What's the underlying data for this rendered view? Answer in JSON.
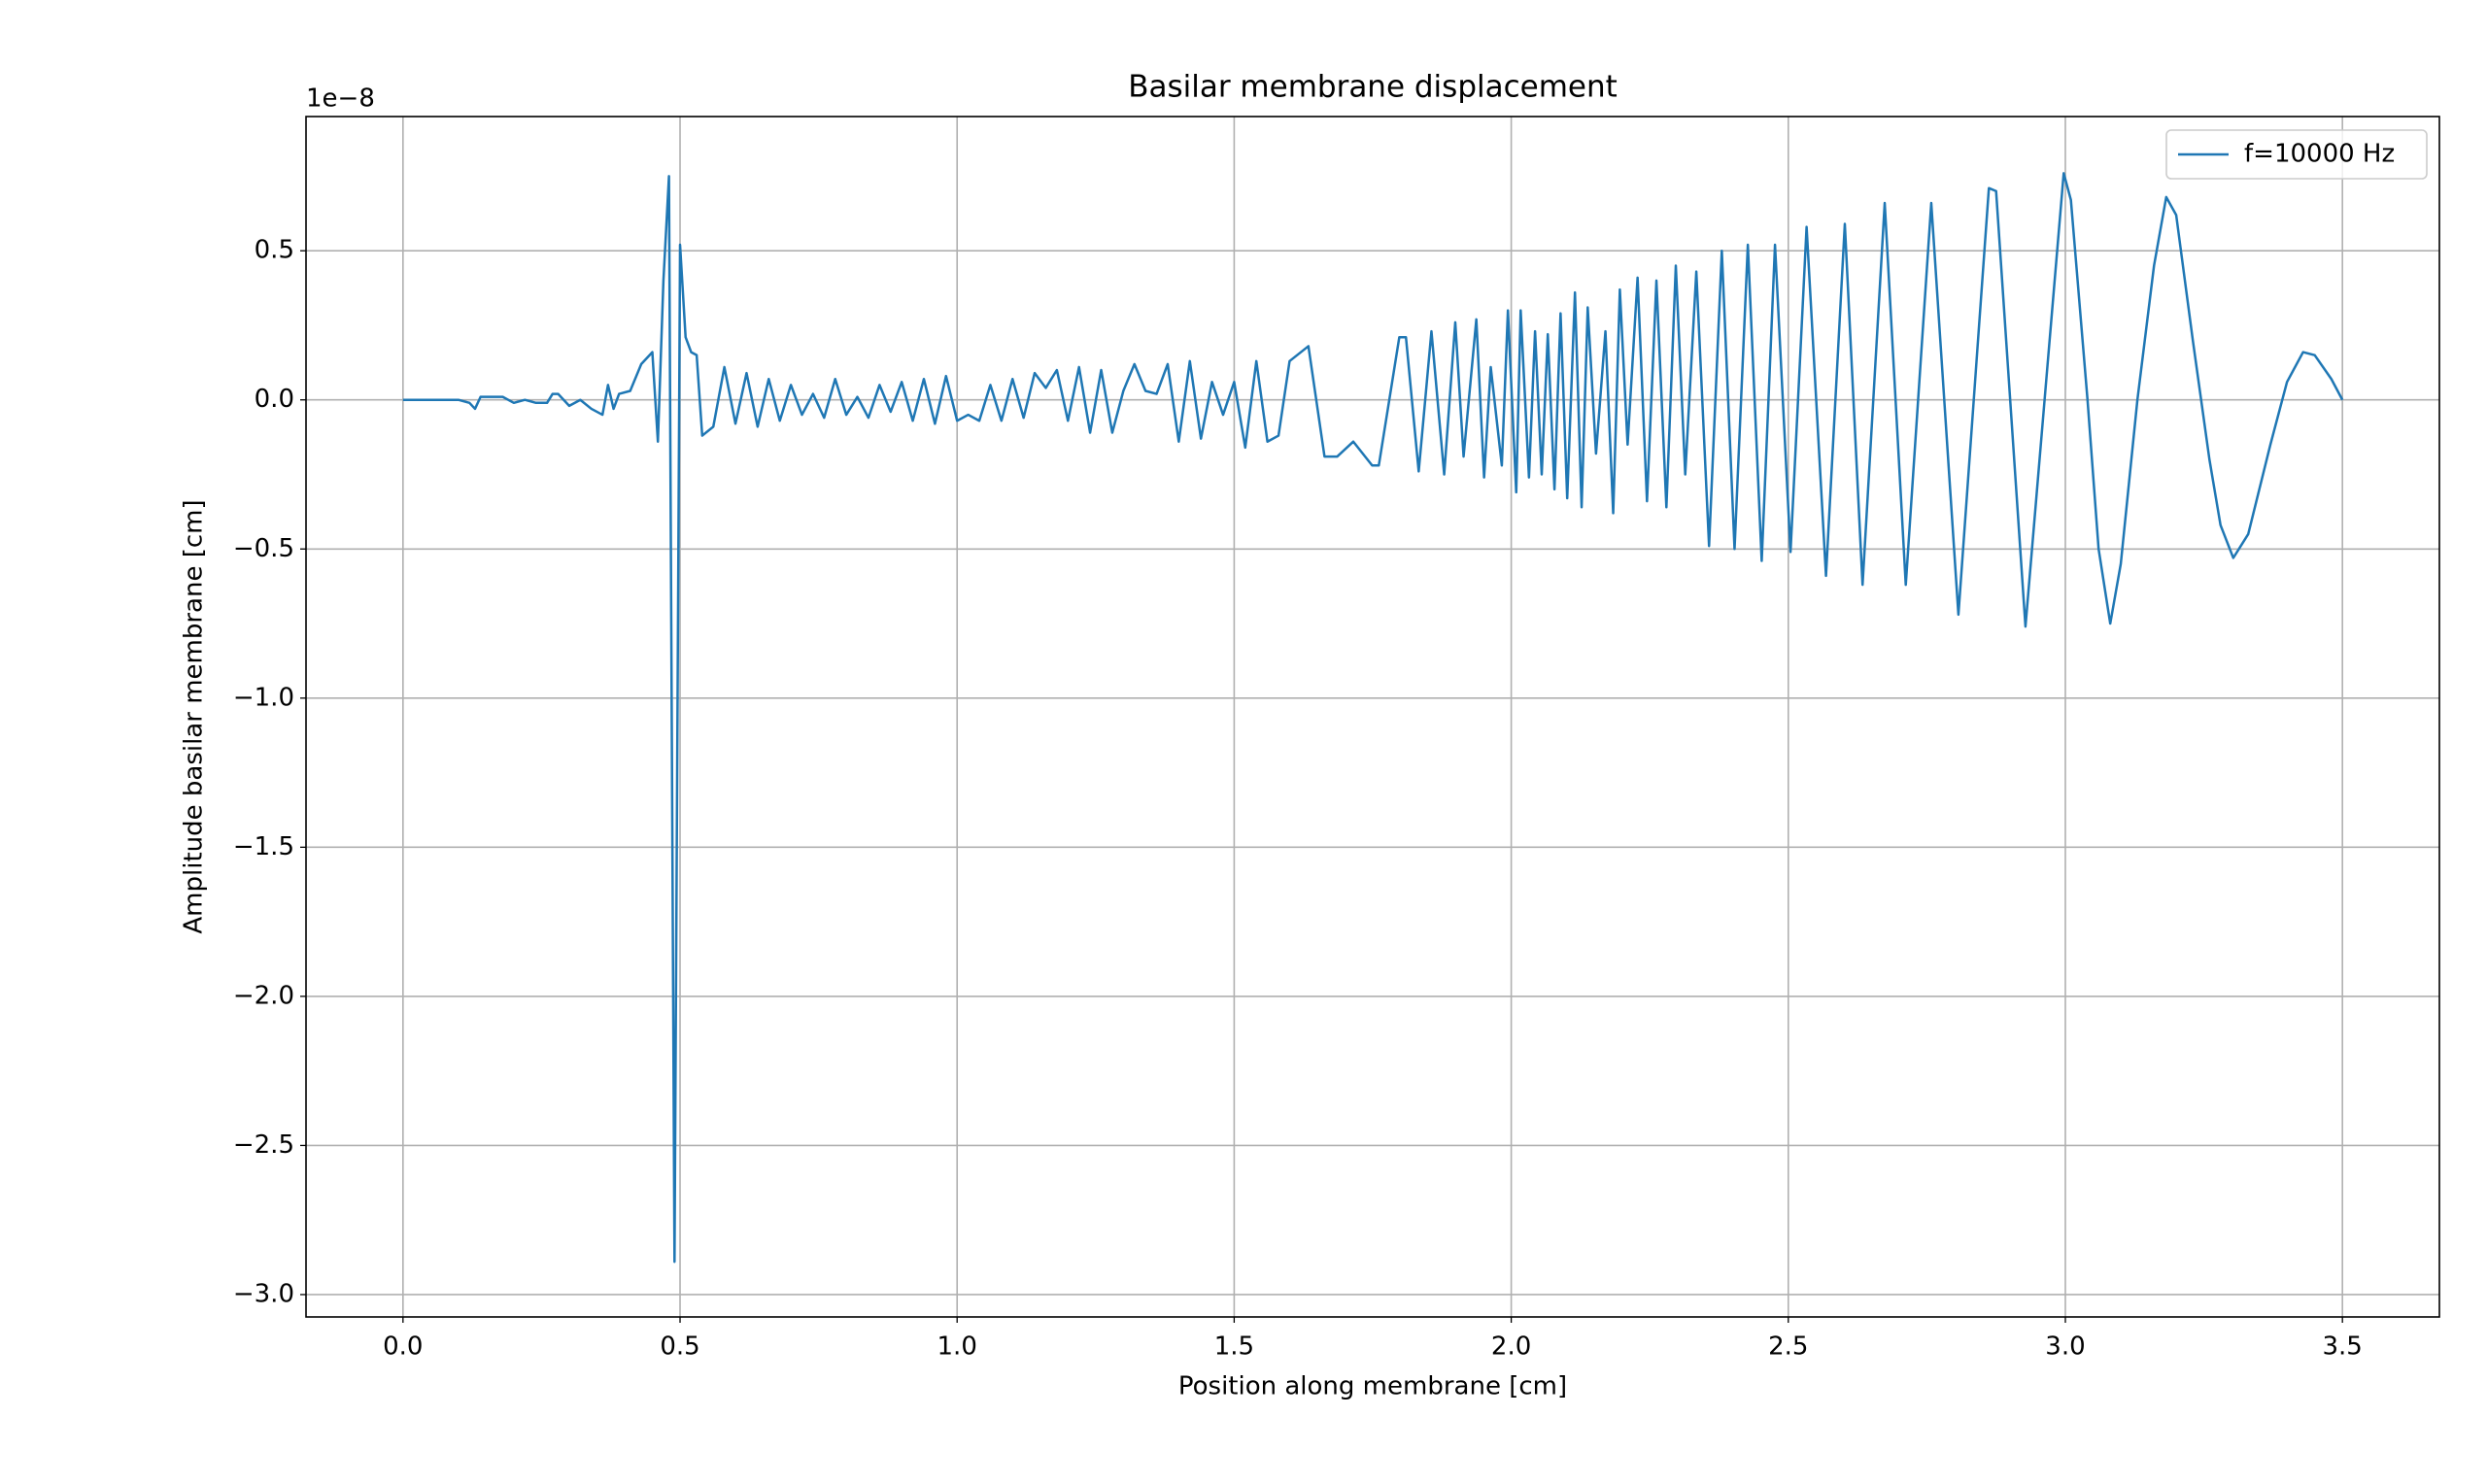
{
  "chart_data": {
    "type": "line",
    "title": "Basilar membrane displacement",
    "xlabel": "Position along membrane [cm]",
    "ylabel": "Amplitude basilar membrane [cm]",
    "y_offset_label": "1e−8",
    "legend": "upper right",
    "grid": true,
    "xlim": [
      -0.175,
      3.675
    ],
    "ylim": [
      -3.075,
      0.95
    ],
    "xticks": [
      {
        "value": 0,
        "label": "0.0"
      },
      0.5,
      {
        "value": 1,
        "label": "1.0"
      },
      1.5,
      {
        "value": 2,
        "label": "2.0"
      },
      2.5,
      {
        "value": 3,
        "label": "3.0"
      },
      3.5
    ],
    "yticks": [
      {
        "value": -3,
        "label": "−3.0"
      },
      {
        "value": -2.5,
        "label": "−2.5"
      },
      {
        "value": -2,
        "label": "−2.0"
      },
      {
        "value": -1.5,
        "label": "−1.5"
      },
      {
        "value": -1,
        "label": "−1.0"
      },
      {
        "value": -0.5,
        "label": "−0.5"
      },
      {
        "value": 0,
        "label": "0.0"
      },
      0.5
    ],
    "x": [
      0,
      0.02,
      0.04,
      0.06,
      0.08,
      0.1,
      0.12,
      0.13,
      0.14,
      0.16,
      0.18,
      0.2,
      0.22,
      0.24,
      0.26,
      0.27,
      0.28,
      0.3,
      0.32,
      0.34,
      0.36,
      0.37,
      0.38,
      0.39,
      0.41,
      0.43,
      0.45,
      0.46,
      0.47,
      0.48,
      0.49,
      0.5,
      0.51,
      0.52,
      0.53,
      0.54,
      0.56,
      0.58,
      0.6,
      0.62,
      0.64,
      0.66,
      0.68,
      0.7,
      0.72,
      0.74,
      0.76,
      0.78,
      0.8,
      0.82,
      0.84,
      0.86,
      0.88,
      0.9,
      0.92,
      0.94,
      0.96,
      0.98,
      1.0,
      1.02,
      1.04,
      1.06,
      1.08,
      1.1,
      1.12,
      1.14,
      1.16,
      1.18,
      1.2,
      1.22,
      1.24,
      1.26,
      1.28,
      1.3,
      1.32,
      1.34,
      1.36,
      1.38,
      1.4,
      1.42,
      1.44,
      1.46,
      1.48,
      1.5,
      1.52,
      1.54,
      1.56,
      1.58,
      1.6,
      1.634,
      1.663,
      1.686,
      1.715,
      1.749,
      1.761,
      1.798,
      1.81,
      1.833,
      1.856,
      1.879,
      1.899,
      1.914,
      1.937,
      1.951,
      1.963,
      1.983,
      1.994,
      2.009,
      2.017,
      2.032,
      2.043,
      2.055,
      2.066,
      2.078,
      2.089,
      2.101,
      2.115,
      2.127,
      2.138,
      2.153,
      2.17,
      2.184,
      2.196,
      2.21,
      2.228,
      2.245,
      2.262,
      2.28,
      2.297,
      2.314,
      2.334,
      2.357,
      2.38,
      2.403,
      2.427,
      2.452,
      2.476,
      2.504,
      2.533,
      2.568,
      2.602,
      2.634,
      2.674,
      2.712,
      2.758,
      2.807,
      2.862,
      2.875,
      2.928,
      2.997,
      3.01,
      3.04,
      3.06,
      3.081,
      3.1,
      3.13,
      3.16,
      3.182,
      3.2,
      3.23,
      3.26,
      3.28,
      3.303,
      3.33,
      3.37,
      3.4,
      3.429,
      3.45,
      3.48,
      3.5
    ],
    "series": [
      {
        "name": "f=10000 Hz",
        "color": "#1f77b4",
        "values": [
          0,
          0,
          0,
          0,
          0,
          0,
          -0.01,
          -0.03,
          0.01,
          0.01,
          0.01,
          -0.01,
          0,
          -0.01,
          -0.01,
          0.02,
          0.02,
          -0.02,
          0,
          -0.03,
          -0.05,
          0.05,
          -0.03,
          0.02,
          0.03,
          0.12,
          0.16,
          -0.14,
          0.4,
          0.75,
          -2.89,
          0.52,
          0.21,
          0.16,
          0.15,
          -0.12,
          -0.09,
          0.11,
          -0.08,
          0.09,
          -0.09,
          0.07,
          -0.07,
          0.05,
          -0.05,
          0.02,
          -0.06,
          0.07,
          -0.05,
          0.01,
          -0.06,
          0.05,
          -0.04,
          0.06,
          -0.07,
          0.07,
          -0.08,
          0.08,
          -0.07,
          -0.05,
          -0.07,
          0.05,
          -0.07,
          0.07,
          -0.06,
          0.09,
          0.04,
          0.1,
          -0.07,
          0.11,
          -0.11,
          0.1,
          -0.11,
          0.03,
          0.12,
          0.03,
          0.02,
          0.12,
          -0.14,
          0.13,
          -0.13,
          0.06,
          -0.05,
          0.06,
          -0.16,
          0.13,
          -0.14,
          -0.12,
          0.13,
          0.18,
          -0.19,
          -0.19,
          -0.14,
          -0.22,
          -0.22,
          0.21,
          0.21,
          -0.24,
          0.23,
          -0.25,
          0.26,
          -0.19,
          0.27,
          -0.26,
          0.11,
          -0.22,
          0.3,
          -0.31,
          0.3,
          -0.26,
          0.23,
          -0.25,
          0.22,
          -0.3,
          0.29,
          -0.33,
          0.36,
          -0.36,
          0.31,
          -0.18,
          0.23,
          -0.38,
          0.37,
          -0.15,
          0.41,
          -0.34,
          0.4,
          -0.36,
          0.45,
          -0.25,
          0.43,
          -0.49,
          0.5,
          -0.5,
          0.52,
          -0.54,
          0.52,
          -0.51,
          0.58,
          -0.59,
          0.59,
          -0.62,
          0.66,
          -0.62,
          0.66,
          -0.72,
          0.71,
          0.7,
          -0.76,
          0.76,
          0.67,
          0,
          -0.5,
          -0.75,
          -0.55,
          0,
          0.45,
          0.68,
          0.62,
          0.2,
          -0.2,
          -0.42,
          -0.53,
          -0.45,
          -0.15,
          0.06,
          0.16,
          0.15,
          0.07,
          0
        ]
      }
    ]
  }
}
